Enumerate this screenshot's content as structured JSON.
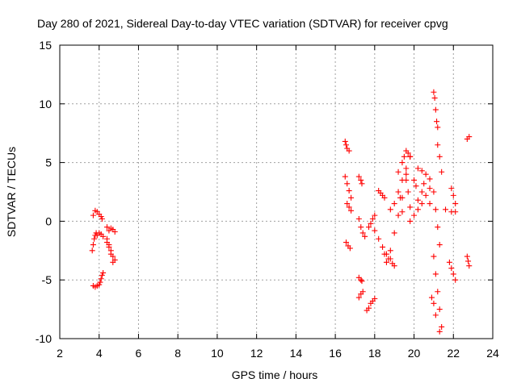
{
  "chart_data": {
    "type": "scatter",
    "title": "Day 280 of 2021, Sidereal Day-to-day VTEC variation (SDTVAR) for receiver cpvg",
    "xlabel": "GPS time / hours",
    "ylabel": "SDTVAR / TECUs",
    "xlim": [
      2,
      24
    ],
    "ylim": [
      -10,
      15
    ],
    "xticks": [
      2,
      4,
      6,
      8,
      10,
      12,
      14,
      16,
      18,
      20,
      22,
      24
    ],
    "yticks": [
      -10,
      -5,
      0,
      5,
      10,
      15
    ],
    "grid": true,
    "marker": "+",
    "color": "#ff0000",
    "segments": [
      {
        "x": [
          3.7,
          3.8,
          3.9,
          4.0,
          4.1,
          4.15
        ],
        "y": [
          0.5,
          0.9,
          0.8,
          0.6,
          0.4,
          0.2
        ]
      },
      {
        "x": [
          3.65,
          3.7,
          3.75,
          3.8,
          3.85
        ],
        "y": [
          -2.5,
          -2.0,
          -1.5,
          -1.2,
          -1.0
        ]
      },
      {
        "x": [
          3.7,
          3.8,
          3.9,
          4.0
        ],
        "y": [
          -5.5,
          -5.6,
          -5.5,
          -5.4
        ]
      },
      {
        "x": [
          4.05,
          4.1,
          4.15,
          4.2
        ],
        "y": [
          -5.2,
          -4.9,
          -4.6,
          -4.4
        ]
      },
      {
        "x": [
          3.9,
          4.0,
          4.1,
          4.2
        ],
        "y": [
          -1.2,
          -1.0,
          -1.1,
          -1.3
        ]
      },
      {
        "x": [
          4.4,
          4.5,
          4.6,
          4.7,
          4.8
        ],
        "y": [
          -0.5,
          -0.8,
          -0.6,
          -0.7,
          -0.9
        ]
      },
      {
        "x": [
          4.4,
          4.5,
          4.6,
          4.7,
          4.8
        ],
        "y": [
          -1.5,
          -2.0,
          -2.5,
          -3.0,
          -3.3
        ]
      },
      {
        "x": [
          4.4,
          4.5,
          4.6,
          4.7
        ],
        "y": [
          -1.8,
          -2.2,
          -2.8,
          -3.5
        ]
      },
      {
        "x": [
          16.5,
          16.55,
          16.6,
          16.7
        ],
        "y": [
          6.8,
          6.5,
          6.2,
          6.0
        ]
      },
      {
        "x": [
          16.5,
          16.6,
          16.7,
          16.8
        ],
        "y": [
          3.8,
          3.2,
          2.6,
          2.0
        ]
      },
      {
        "x": [
          16.6,
          16.7,
          16.8
        ],
        "y": [
          1.5,
          1.2,
          0.9
        ]
      },
      {
        "x": [
          16.55,
          16.65,
          16.75
        ],
        "y": [
          -1.8,
          -2.1,
          -2.3
        ]
      },
      {
        "x": [
          17.2,
          17.3,
          17.35
        ],
        "y": [
          3.8,
          3.5,
          3.2
        ]
      },
      {
        "x": [
          17.2,
          17.3,
          17.4,
          17.5
        ],
        "y": [
          0.2,
          -0.5,
          -1.0,
          -1.3
        ]
      },
      {
        "x": [
          17.2,
          17.3,
          17.35
        ],
        "y": [
          -4.8,
          -5.0,
          -5.1
        ]
      },
      {
        "x": [
          17.2,
          17.3,
          17.4
        ],
        "y": [
          -6.5,
          -6.2,
          -6.0
        ]
      },
      {
        "x": [
          17.6,
          17.7,
          17.8,
          17.9,
          18.0
        ],
        "y": [
          -7.6,
          -7.4,
          -7.0,
          -6.8,
          -6.6
        ]
      },
      {
        "x": [
          17.7,
          17.8,
          17.9,
          18.0
        ],
        "y": [
          -0.5,
          -0.2,
          0.2,
          0.5
        ]
      },
      {
        "x": [
          18.2,
          18.3,
          18.4,
          18.5
        ],
        "y": [
          2.6,
          2.4,
          2.2,
          2.0
        ]
      },
      {
        "x": [
          18.0,
          18.2,
          18.4,
          18.6,
          18.8
        ],
        "y": [
          -0.8,
          -1.5,
          -2.2,
          -2.8,
          -3.2
        ]
      },
      {
        "x": [
          18.5,
          18.7,
          18.9,
          19.0
        ],
        "y": [
          -2.8,
          -3.2,
          -3.6,
          -3.8
        ]
      },
      {
        "x": [
          18.6,
          18.8,
          19.0,
          19.2,
          19.4,
          19.6
        ],
        "y": [
          -3.5,
          -2.5,
          -1.0,
          0.5,
          2.0,
          3.5
        ]
      },
      {
        "x": [
          18.8,
          19.0,
          19.2,
          19.4,
          19.6,
          19.8
        ],
        "y": [
          1.0,
          1.5,
          2.5,
          3.5,
          4.5,
          5.5
        ]
      },
      {
        "x": [
          19.4,
          19.5,
          19.6,
          19.7,
          19.8
        ],
        "y": [
          5.0,
          5.5,
          6.0,
          5.8,
          5.5
        ]
      },
      {
        "x": [
          19.2,
          19.6,
          20.0,
          20.4,
          20.8
        ],
        "y": [
          4.2,
          4.0,
          3.5,
          2.5,
          1.5
        ]
      },
      {
        "x": [
          19.3,
          19.7,
          20.1,
          20.5,
          20.8
        ],
        "y": [
          2.0,
          2.5,
          3.0,
          3.2,
          2.8
        ]
      },
      {
        "x": [
          19.4,
          19.8,
          20.2,
          20.6
        ],
        "y": [
          0.8,
          1.2,
          1.8,
          2.2
        ]
      },
      {
        "x": [
          19.8,
          20.0,
          20.2,
          20.4
        ],
        "y": [
          0.0,
          0.5,
          1.0,
          1.5
        ]
      },
      {
        "x": [
          20.2,
          20.4,
          20.6,
          20.8
        ],
        "y": [
          4.5,
          4.3,
          4.0,
          3.6
        ]
      },
      {
        "x": [
          21.0,
          21.05,
          21.1,
          21.15,
          21.2
        ],
        "y": [
          11.0,
          10.5,
          9.5,
          8.5,
          8.0
        ]
      },
      {
        "x": [
          21.2,
          21.3,
          21.4
        ],
        "y": [
          6.5,
          5.5,
          4.2
        ]
      },
      {
        "x": [
          21.0,
          21.1,
          21.2,
          21.3
        ],
        "y": [
          2.5,
          1.0,
          -0.5,
          -2.0
        ]
      },
      {
        "x": [
          21.0,
          21.1,
          21.2,
          21.3,
          21.4
        ],
        "y": [
          -3.0,
          -4.5,
          -6.0,
          -7.5,
          -9.0
        ]
      },
      {
        "x": [
          20.9,
          21.0,
          21.1,
          21.3
        ],
        "y": [
          -6.5,
          -7.0,
          -8.0,
          -9.4
        ]
      },
      {
        "x": [
          21.8,
          21.9,
          22.0,
          22.1
        ],
        "y": [
          -3.5,
          -4.0,
          -4.5,
          -5.0
        ]
      },
      {
        "x": [
          21.9,
          22.0,
          22.1
        ],
        "y": [
          2.8,
          2.2,
          1.5
        ]
      },
      {
        "x": [
          21.6,
          21.9,
          22.1
        ],
        "y": [
          1.0,
          0.8,
          0.8
        ]
      },
      {
        "x": [
          22.7,
          22.8
        ],
        "y": [
          7.0,
          7.2
        ]
      },
      {
        "x": [
          22.7,
          22.75,
          22.8
        ],
        "y": [
          -3.0,
          -3.4,
          -3.8
        ]
      }
    ]
  }
}
